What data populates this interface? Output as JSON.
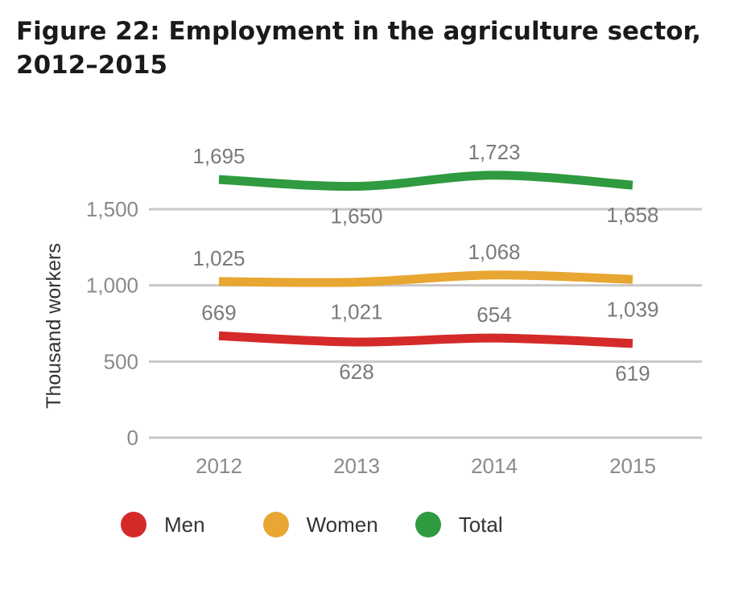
{
  "title": "Figure 22: Employment in the agriculture sector, 2012–2015",
  "chart_data": {
    "type": "line",
    "title": "Figure 22: Employment in the agriculture sector, 2012–2015",
    "xlabel": "",
    "ylabel": "Thousand workers",
    "categories": [
      "2012",
      "2013",
      "2014",
      "2015"
    ],
    "y_ticks": [
      0,
      500,
      1000,
      1500
    ],
    "y_tick_labels": [
      "0",
      "500",
      "1,000",
      "1,500"
    ],
    "ylim": [
      0,
      1500
    ],
    "grid": true,
    "legend_position": "bottom",
    "series": [
      {
        "name": "Men",
        "color": "#d42a2a",
        "values": [
          669,
          628,
          654,
          619
        ],
        "labels": [
          "669",
          "628",
          "654",
          "619"
        ]
      },
      {
        "name": "Women",
        "color": "#e8a632",
        "values": [
          1025,
          1021,
          1068,
          1039
        ],
        "labels": [
          "1,025",
          "1,021",
          "1,068",
          "1,039"
        ]
      },
      {
        "name": "Total",
        "color": "#2f9a3f",
        "values": [
          1695,
          1650,
          1723,
          1658
        ],
        "labels": [
          "1,695",
          "1,650",
          "1,723",
          "1,658"
        ]
      }
    ]
  }
}
